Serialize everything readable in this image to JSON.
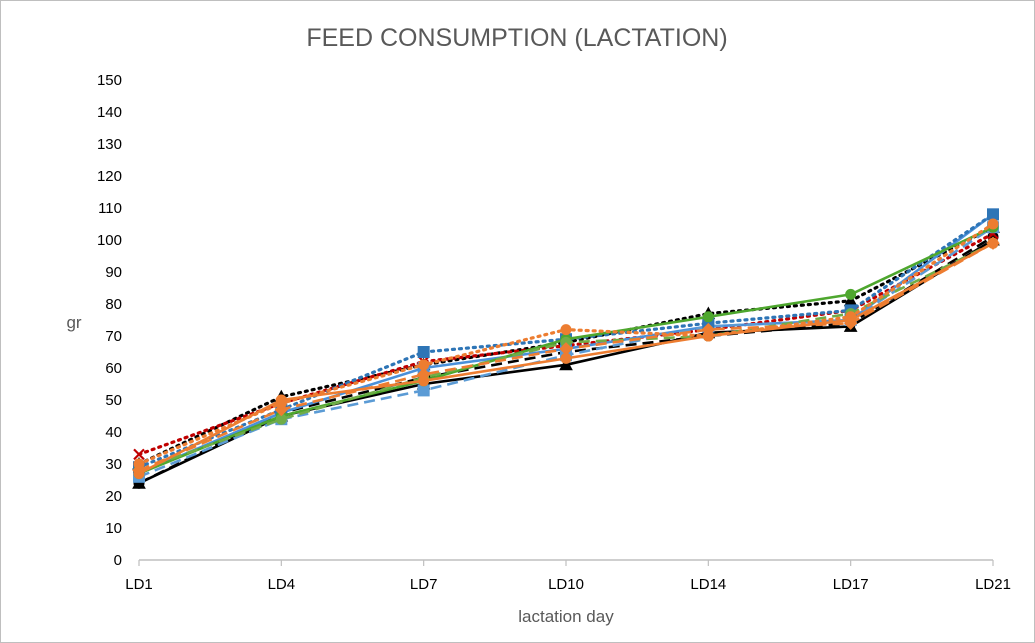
{
  "chart_data": {
    "type": "line",
    "title": "FEED CONSUMPTION (LACTATION)",
    "xlabel": "lactation day",
    "ylabel": "gr",
    "categories": [
      "LD1",
      "LD4",
      "LD7",
      "LD10",
      "LD14",
      "LD17",
      "LD21"
    ],
    "y_ticks": [
      "0",
      "10",
      "20",
      "30",
      "40",
      "50",
      "60",
      "70",
      "80",
      "90",
      "100",
      "110",
      "120",
      "130",
      "140",
      "150"
    ],
    "ylim": [
      0,
      150
    ],
    "grid": false,
    "legend": "none",
    "series": [
      {
        "values": [
          24,
          45,
          55,
          61,
          71,
          73,
          100
        ],
        "color": "#000000",
        "dash": "solid",
        "marker": "triangle"
      },
      {
        "values": [
          24,
          46,
          57,
          65,
          70,
          74,
          101
        ],
        "color": "#000000",
        "dash": "dash",
        "marker": "circle"
      },
      {
        "values": [
          30,
          51,
          61,
          68,
          77,
          81,
          104
        ],
        "color": "#000000",
        "dash": "dot",
        "marker": "triangle"
      },
      {
        "values": [
          33,
          49,
          62,
          67,
          72,
          78,
          102
        ],
        "color": "#c00000",
        "dash": "dot",
        "marker": "x"
      },
      {
        "values": [
          27,
          46,
          60,
          66,
          73,
          75,
          108
        ],
        "color": "#4a90d9",
        "dash": "solid",
        "marker": "square"
      },
      {
        "values": [
          26,
          44,
          53,
          64,
          73,
          75,
          104
        ],
        "color": "#5b9bd5",
        "dash": "dash",
        "marker": "square"
      },
      {
        "values": [
          29,
          47,
          65,
          69,
          74,
          78,
          108
        ],
        "color": "#2e75b6",
        "dash": "dot",
        "marker": "square"
      },
      {
        "values": [
          27,
          45,
          56,
          69,
          76,
          83,
          104
        ],
        "color": "#4ea72e",
        "dash": "solid",
        "marker": "circle"
      },
      {
        "values": [
          28,
          44,
          57,
          68,
          70,
          77,
          99
        ],
        "color": "#70ad47",
        "dash": "dash",
        "marker": "circle"
      },
      {
        "values": [
          27,
          50,
          56,
          63,
          70,
          75,
          99
        ],
        "color": "#ed7d31",
        "dash": "solid",
        "marker": "circle"
      },
      {
        "values": [
          28,
          47,
          58,
          66,
          72,
          74,
          99
        ],
        "color": "#ed7d31",
        "dash": "dash",
        "marker": "diamond"
      },
      {
        "values": [
          30,
          49,
          61,
          72,
          70,
          76,
          105
        ],
        "color": "#ed7d31",
        "dash": "dot",
        "marker": "circle"
      }
    ]
  }
}
